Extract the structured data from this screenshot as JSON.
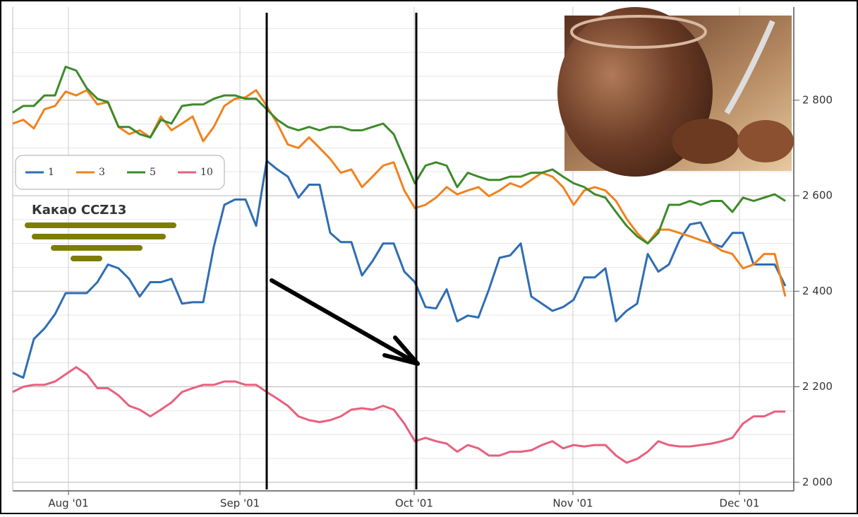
{
  "chart_data": {
    "type": "line",
    "annotation": "Какао  CCZ13",
    "x": [
      0,
      1,
      2,
      3,
      4,
      5,
      6,
      7,
      8,
      9,
      10,
      11,
      12,
      13,
      14,
      15,
      16,
      17,
      18,
      19,
      20,
      21,
      22,
      23,
      24,
      25,
      26,
      27,
      28,
      29,
      30,
      31,
      32,
      33,
      34,
      35,
      36,
      37,
      38,
      39,
      40,
      41,
      42,
      43,
      44,
      45,
      46,
      47,
      48,
      49,
      50,
      51,
      52,
      53,
      54,
      55,
      56,
      57,
      58,
      59,
      60,
      61,
      62,
      63,
      64,
      65,
      66,
      67,
      68,
      69,
      70,
      71,
      72,
      73
    ],
    "xlim": [
      0,
      73.8
    ],
    "xticks": [
      {
        "value": 5.27,
        "label": "Aug '01"
      },
      {
        "value": 21.47,
        "label": "Sep '01"
      },
      {
        "value": 37.93,
        "label": "Oct '01"
      },
      {
        "value": 52.93,
        "label": "Nov '01"
      },
      {
        "value": 68.67,
        "label": "Dec '01"
      }
    ],
    "ylim": [
      1982,
      2995
    ],
    "yticks": [
      {
        "value": 2000,
        "label": "2 000"
      },
      {
        "value": 2200,
        "label": "2 200"
      },
      {
        "value": 2400,
        "label": "2 400"
      },
      {
        "value": 2600,
        "label": "2 600"
      },
      {
        "value": 2800,
        "label": "2 800"
      }
    ],
    "grid": true,
    "legend": "upper left",
    "series": [
      {
        "name": "1",
        "color": "#2f6db3",
        "values": [
          2229,
          2219,
          2300,
          2322,
          2352,
          2396,
          2396,
          2396,
          2419,
          2456,
          2448,
          2426,
          2389,
          2419,
          2419,
          2426,
          2374,
          2377,
          2377,
          2493,
          2581,
          2592,
          2592,
          2537,
          2673,
          2655,
          2640,
          2596,
          2623,
          2623,
          2522,
          2503,
          2503,
          2433,
          2463,
          2500,
          2500,
          2441,
          2419,
          2367,
          2364,
          2404,
          2337,
          2349,
          2345,
          2404,
          2470,
          2475,
          2500,
          2389,
          2374,
          2359,
          2367,
          2382,
          2429,
          2429,
          2448,
          2337,
          2359,
          2374,
          2478,
          2441,
          2456,
          2507,
          2540,
          2544,
          2500,
          2493,
          2522,
          2522,
          2456,
          2456,
          2456,
          2411
        ]
      },
      {
        "name": "3",
        "color": "#f0821e",
        "values": [
          2751,
          2759,
          2741,
          2781,
          2788,
          2818,
          2810,
          2821,
          2791,
          2796,
          2744,
          2729,
          2737,
          2722,
          2766,
          2737,
          2751,
          2766,
          2714,
          2744,
          2788,
          2803,
          2806,
          2821,
          2788,
          2751,
          2707,
          2700,
          2722,
          2700,
          2677,
          2648,
          2655,
          2618,
          2640,
          2663,
          2670,
          2611,
          2574,
          2581,
          2596,
          2618,
          2603,
          2611,
          2618,
          2599,
          2611,
          2626,
          2618,
          2633,
          2648,
          2640,
          2618,
          2581,
          2611,
          2618,
          2611,
          2589,
          2552,
          2522,
          2500,
          2529,
          2529,
          2522,
          2515,
          2507,
          2500,
          2485,
          2478,
          2448,
          2456,
          2478,
          2478,
          2389
        ]
      },
      {
        "name": "5",
        "color": "#3d8a2a",
        "values": [
          2774,
          2788,
          2788,
          2810,
          2810,
          2870,
          2862,
          2825,
          2803,
          2796,
          2744,
          2744,
          2729,
          2722,
          2759,
          2751,
          2788,
          2791,
          2791,
          2803,
          2810,
          2810,
          2803,
          2803,
          2781,
          2759,
          2744,
          2737,
          2744,
          2737,
          2744,
          2744,
          2737,
          2737,
          2744,
          2751,
          2729,
          2677,
          2626,
          2663,
          2670,
          2663,
          2618,
          2648,
          2640,
          2633,
          2633,
          2640,
          2640,
          2648,
          2648,
          2655,
          2640,
          2626,
          2618,
          2603,
          2596,
          2566,
          2537,
          2515,
          2500,
          2522,
          2581,
          2581,
          2589,
          2581,
          2589,
          2589,
          2566,
          2596,
          2589,
          2596,
          2603,
          2589
        ]
      },
      {
        "name": "10",
        "color": "#e8607e",
        "values": [
          2189,
          2200,
          2204,
          2204,
          2211,
          2226,
          2241,
          2226,
          2197,
          2197,
          2182,
          2160,
          2152,
          2138,
          2152,
          2167,
          2189,
          2197,
          2204,
          2204,
          2211,
          2211,
          2204,
          2204,
          2189,
          2175,
          2160,
          2138,
          2130,
          2126,
          2130,
          2138,
          2152,
          2155,
          2152,
          2160,
          2152,
          2123,
          2086,
          2093,
          2086,
          2081,
          2064,
          2078,
          2071,
          2056,
          2056,
          2064,
          2064,
          2067,
          2078,
          2086,
          2071,
          2078,
          2075,
          2078,
          2078,
          2056,
          2041,
          2049,
          2064,
          2086,
          2078,
          2075,
          2075,
          2078,
          2081,
          2086,
          2093,
          2123,
          2138,
          2138,
          2148,
          2148
        ]
      }
    ]
  }
}
